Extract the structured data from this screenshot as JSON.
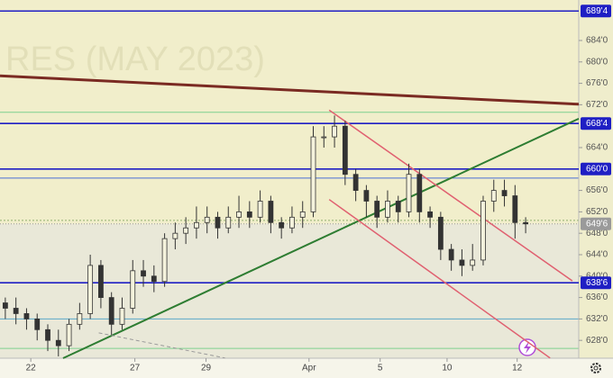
{
  "chart_data": {
    "type": "candlestick",
    "watermark": "RES (MAY 2023)",
    "xlim": [
      -0.5,
      54
    ],
    "ylim": [
      624.67,
      691.56
    ],
    "xticks": [
      {
        "value": 2.4,
        "label": "22"
      },
      {
        "value": 12.2,
        "label": "27"
      },
      {
        "value": 18.9,
        "label": "29"
      },
      {
        "value": 28.6,
        "label": "Apr"
      },
      {
        "value": 35.3,
        "label": "5"
      },
      {
        "value": 41.6,
        "label": "10"
      },
      {
        "value": 48.2,
        "label": "12"
      }
    ],
    "yticks": [
      {
        "value": 684,
        "label": "684'0"
      },
      {
        "value": 680,
        "label": "680'0"
      },
      {
        "value": 676,
        "label": "676'0"
      },
      {
        "value": 672,
        "label": "672'0"
      },
      {
        "value": 664,
        "label": "664'0"
      },
      {
        "value": 656,
        "label": "656'0"
      },
      {
        "value": 652,
        "label": "652'0"
      },
      {
        "value": 648,
        "label": "648'0"
      },
      {
        "value": 644,
        "label": "644'0"
      },
      {
        "value": 640,
        "label": "640'0"
      },
      {
        "value": 636,
        "label": "636'0"
      },
      {
        "value": 632,
        "label": "632'0"
      },
      {
        "value": 628,
        "label": "628'0"
      }
    ],
    "levels": [
      {
        "value": 689.5,
        "label": "689'4",
        "color": "#1f1fc4"
      },
      {
        "value": 668.5,
        "label": "668'4",
        "color": "#1f1fc4"
      },
      {
        "value": 660,
        "label": "660'0",
        "color": "#1f1fc4"
      },
      {
        "value": 638.75,
        "label": "638'6",
        "color": "#1f1fc4"
      }
    ],
    "last_price": {
      "value": 649.75,
      "label": "649'6",
      "color": "#9a9a9a"
    },
    "guides": [
      {
        "value": 670.6,
        "color": "#7fd08f"
      },
      {
        "value": 658.3,
        "color": "#4a6fd6"
      },
      {
        "value": 650.4,
        "color": "#8fb070"
      },
      {
        "value": 632,
        "color": "#5aa8c8"
      },
      {
        "value": 626.5,
        "color": "#7fd08f"
      }
    ],
    "lines": [
      {
        "x": [
          -0.5,
          54
        ],
        "y": [
          677.4,
          672.1
        ],
        "color": "#7a2a22",
        "width": 3
      },
      {
        "x": [
          5.44,
          54
        ],
        "y": [
          624.67,
          669.4
        ],
        "color": "#2e7d32",
        "width": 2
      },
      {
        "x": [
          30.5,
          53.4
        ],
        "y": [
          671.0,
          639.1
        ],
        "color": "#e06070",
        "width": 1.5
      },
      {
        "x": [
          30.5,
          51.3
        ],
        "y": [
          654.3,
          624.7
        ],
        "color": "#e06070",
        "width": 1.5
      },
      {
        "x": [
          8.8,
          20.7
        ],
        "y": [
          629.4,
          624.7
        ],
        "color": "#9a9a9a",
        "width": 1,
        "dashed": true
      }
    ],
    "candle_color": "#333333",
    "ohlc": [
      [
        635,
        636,
        632,
        634
      ],
      [
        634,
        636,
        631,
        633
      ],
      [
        633,
        634,
        630,
        632
      ],
      [
        632,
        633,
        628,
        630
      ],
      [
        630,
        631,
        626,
        628
      ],
      [
        628,
        630,
        625,
        627
      ],
      [
        627,
        632,
        626,
        631
      ],
      [
        631,
        635,
        630,
        633
      ],
      [
        633,
        644,
        632,
        642
      ],
      [
        642,
        643,
        634,
        636
      ],
      [
        636,
        637,
        629,
        631
      ],
      [
        631,
        636,
        630,
        634
      ],
      [
        634,
        643,
        633,
        641
      ],
      [
        641,
        643,
        638,
        640
      ],
      [
        640,
        642,
        637,
        639
      ],
      [
        639,
        648,
        638,
        647
      ],
      [
        647,
        650,
        645,
        648
      ],
      [
        648,
        651,
        646,
        649
      ],
      [
        649,
        653,
        647,
        650
      ],
      [
        650,
        653,
        648,
        651
      ],
      [
        651,
        652,
        647,
        649
      ],
      [
        649,
        653,
        648,
        651
      ],
      [
        651,
        655,
        649,
        652
      ],
      [
        652,
        654,
        649,
        651
      ],
      [
        651,
        656,
        650,
        654
      ],
      [
        654,
        655,
        648,
        650
      ],
      [
        650,
        651,
        647,
        649
      ],
      [
        649,
        653,
        648,
        651
      ],
      [
        651,
        654,
        649,
        652
      ],
      [
        652,
        668,
        651,
        666
      ],
      [
        666,
        668,
        664,
        666
      ],
      [
        666,
        670,
        664,
        668
      ],
      [
        668,
        669,
        657,
        659
      ],
      [
        659,
        660,
        654,
        656
      ],
      [
        656,
        657,
        651,
        654
      ],
      [
        654,
        655,
        649,
        651
      ],
      [
        651,
        656,
        650,
        654
      ],
      [
        654,
        655,
        650,
        652
      ],
      [
        652,
        661,
        651,
        659
      ],
      [
        659,
        660,
        650,
        652
      ],
      [
        652,
        653,
        649,
        651
      ],
      [
        651,
        652,
        643,
        645
      ],
      [
        645,
        646,
        641,
        643
      ],
      [
        643,
        645,
        640,
        642
      ],
      [
        642,
        646,
        641,
        643
      ],
      [
        643,
        655,
        642,
        654
      ],
      [
        654,
        658,
        652,
        656
      ],
      [
        656,
        658,
        653,
        655
      ],
      [
        655,
        657,
        647,
        650
      ],
      [
        650,
        651,
        648,
        649.75
      ]
    ]
  }
}
